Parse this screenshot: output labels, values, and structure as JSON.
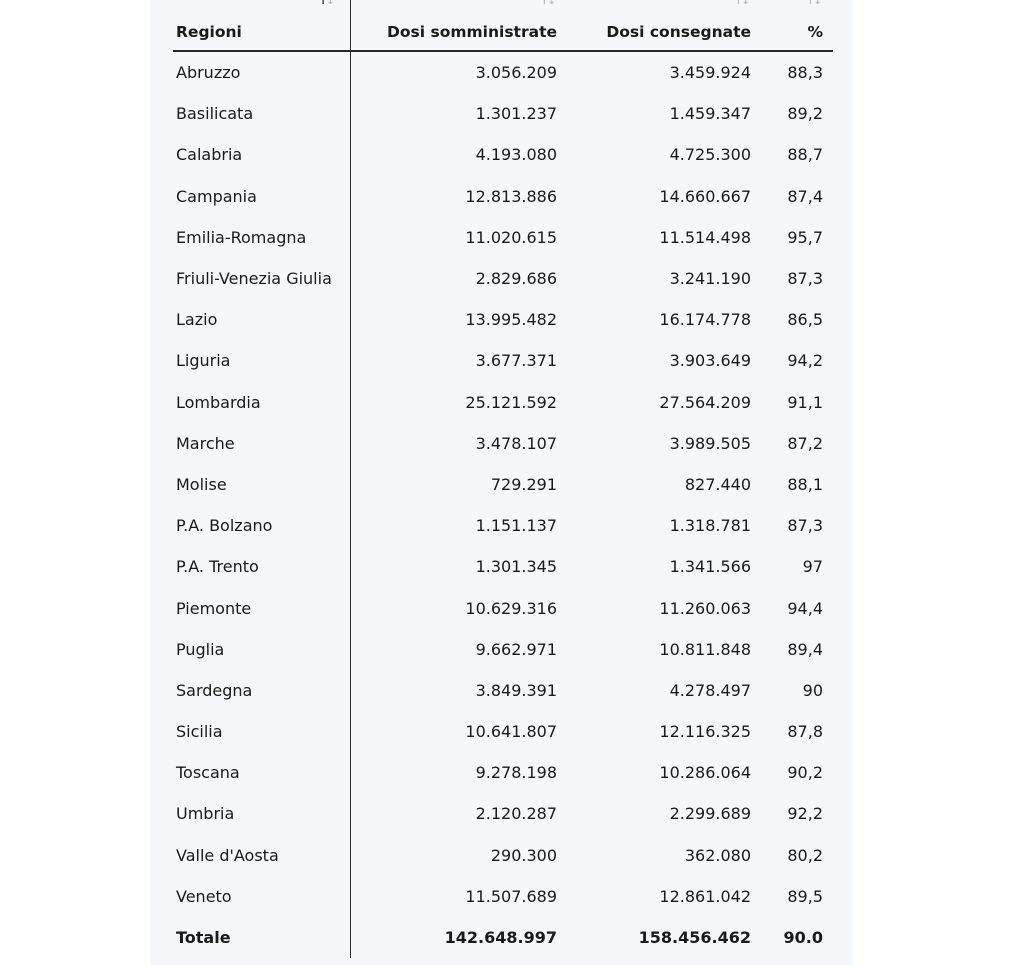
{
  "headers": {
    "regioni": "Regioni",
    "somministrate": "Dosi somministrate",
    "consegnate": "Dosi consegnate",
    "percent": "%"
  },
  "sort_icon": {
    "up": "↑",
    "down": "↓"
  },
  "rows": [
    {
      "regione": "Abruzzo",
      "somministrate": "3.056.209",
      "consegnate": "3.459.924",
      "percent": "88,3"
    },
    {
      "regione": "Basilicata",
      "somministrate": "1.301.237",
      "consegnate": "1.459.347",
      "percent": "89,2"
    },
    {
      "regione": "Calabria",
      "somministrate": "4.193.080",
      "consegnate": "4.725.300",
      "percent": "88,7"
    },
    {
      "regione": "Campania",
      "somministrate": "12.813.886",
      "consegnate": "14.660.667",
      "percent": "87,4"
    },
    {
      "regione": "Emilia-Romagna",
      "somministrate": "11.020.615",
      "consegnate": "11.514.498",
      "percent": "95,7"
    },
    {
      "regione": "Friuli-Venezia Giulia",
      "somministrate": "2.829.686",
      "consegnate": "3.241.190",
      "percent": "87,3"
    },
    {
      "regione": "Lazio",
      "somministrate": "13.995.482",
      "consegnate": "16.174.778",
      "percent": "86,5"
    },
    {
      "regione": "Liguria",
      "somministrate": "3.677.371",
      "consegnate": "3.903.649",
      "percent": "94,2"
    },
    {
      "regione": "Lombardia",
      "somministrate": "25.121.592",
      "consegnate": "27.564.209",
      "percent": "91,1"
    },
    {
      "regione": "Marche",
      "somministrate": "3.478.107",
      "consegnate": "3.989.505",
      "percent": "87,2"
    },
    {
      "regione": "Molise",
      "somministrate": "729.291",
      "consegnate": "827.440",
      "percent": "88,1"
    },
    {
      "regione": "P.A. Bolzano",
      "somministrate": "1.151.137",
      "consegnate": "1.318.781",
      "percent": "87,3"
    },
    {
      "regione": "P.A. Trento",
      "somministrate": "1.301.345",
      "consegnate": "1.341.566",
      "percent": "97"
    },
    {
      "regione": "Piemonte",
      "somministrate": "10.629.316",
      "consegnate": "11.260.063",
      "percent": "94,4"
    },
    {
      "regione": "Puglia",
      "somministrate": "9.662.971",
      "consegnate": "10.811.848",
      "percent": "89,4"
    },
    {
      "regione": "Sardegna",
      "somministrate": "3.849.391",
      "consegnate": "4.278.497",
      "percent": "90"
    },
    {
      "regione": "Sicilia",
      "somministrate": "10.641.807",
      "consegnate": "12.116.325",
      "percent": "87,8"
    },
    {
      "regione": "Toscana",
      "somministrate": "9.278.198",
      "consegnate": "10.286.064",
      "percent": "90,2"
    },
    {
      "regione": "Umbria",
      "somministrate": "2.120.287",
      "consegnate": "2.299.689",
      "percent": "92,2"
    },
    {
      "regione": "Valle d'Aosta",
      "somministrate": "290.300",
      "consegnate": "362.080",
      "percent": "80,2"
    },
    {
      "regione": "Veneto",
      "somministrate": "11.507.689",
      "consegnate": "12.861.042",
      "percent": "89,5"
    }
  ],
  "totals": {
    "regione": "Totale",
    "somministrate": "142.648.997",
    "consegnate": "158.456.462",
    "percent": "90.0"
  }
}
